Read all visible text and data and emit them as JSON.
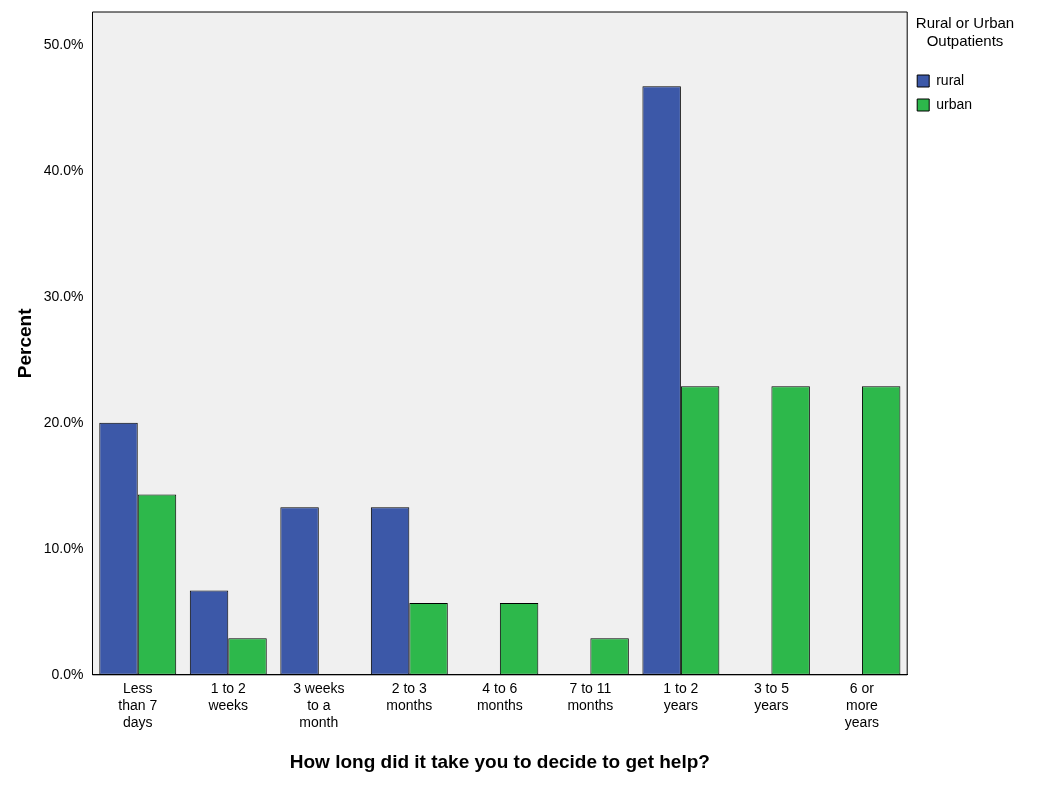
{
  "chart_data": {
    "type": "bar",
    "xlabel": "How long did it take you to decide to get help?",
    "ylabel": "Percent",
    "legend_title": "Rural or Urban Outpatients",
    "categories": [
      "Less than 7 days",
      "1 to 2 weeks",
      "3 weeks to a month",
      "2 to 3 months",
      "4 to 6 months",
      "7 to 11 months",
      "1 to 2 years",
      "3 to 5 years",
      "6 or more years"
    ],
    "series": [
      {
        "name": "rural",
        "color": "#3c58a8",
        "values": [
          20.0,
          6.7,
          13.3,
          13.3,
          0,
          0,
          46.7,
          0,
          0
        ]
      },
      {
        "name": "urban",
        "color": "#2db84b",
        "values": [
          14.3,
          2.9,
          0,
          5.7,
          5.7,
          2.9,
          22.9,
          22.9,
          22.9
        ]
      }
    ],
    "ylim": [
      0,
      52.6
    ],
    "yticks": [
      {
        "value": 0,
        "label": "0.0%"
      },
      {
        "value": 10,
        "label": "10.0%"
      },
      {
        "value": 20,
        "label": "20.0%"
      },
      {
        "value": 30,
        "label": "30.0%"
      },
      {
        "value": 40,
        "label": "40.0%"
      },
      {
        "value": 50,
        "label": "50.0%"
      }
    ],
    "grid": false,
    "legend": "top right"
  }
}
